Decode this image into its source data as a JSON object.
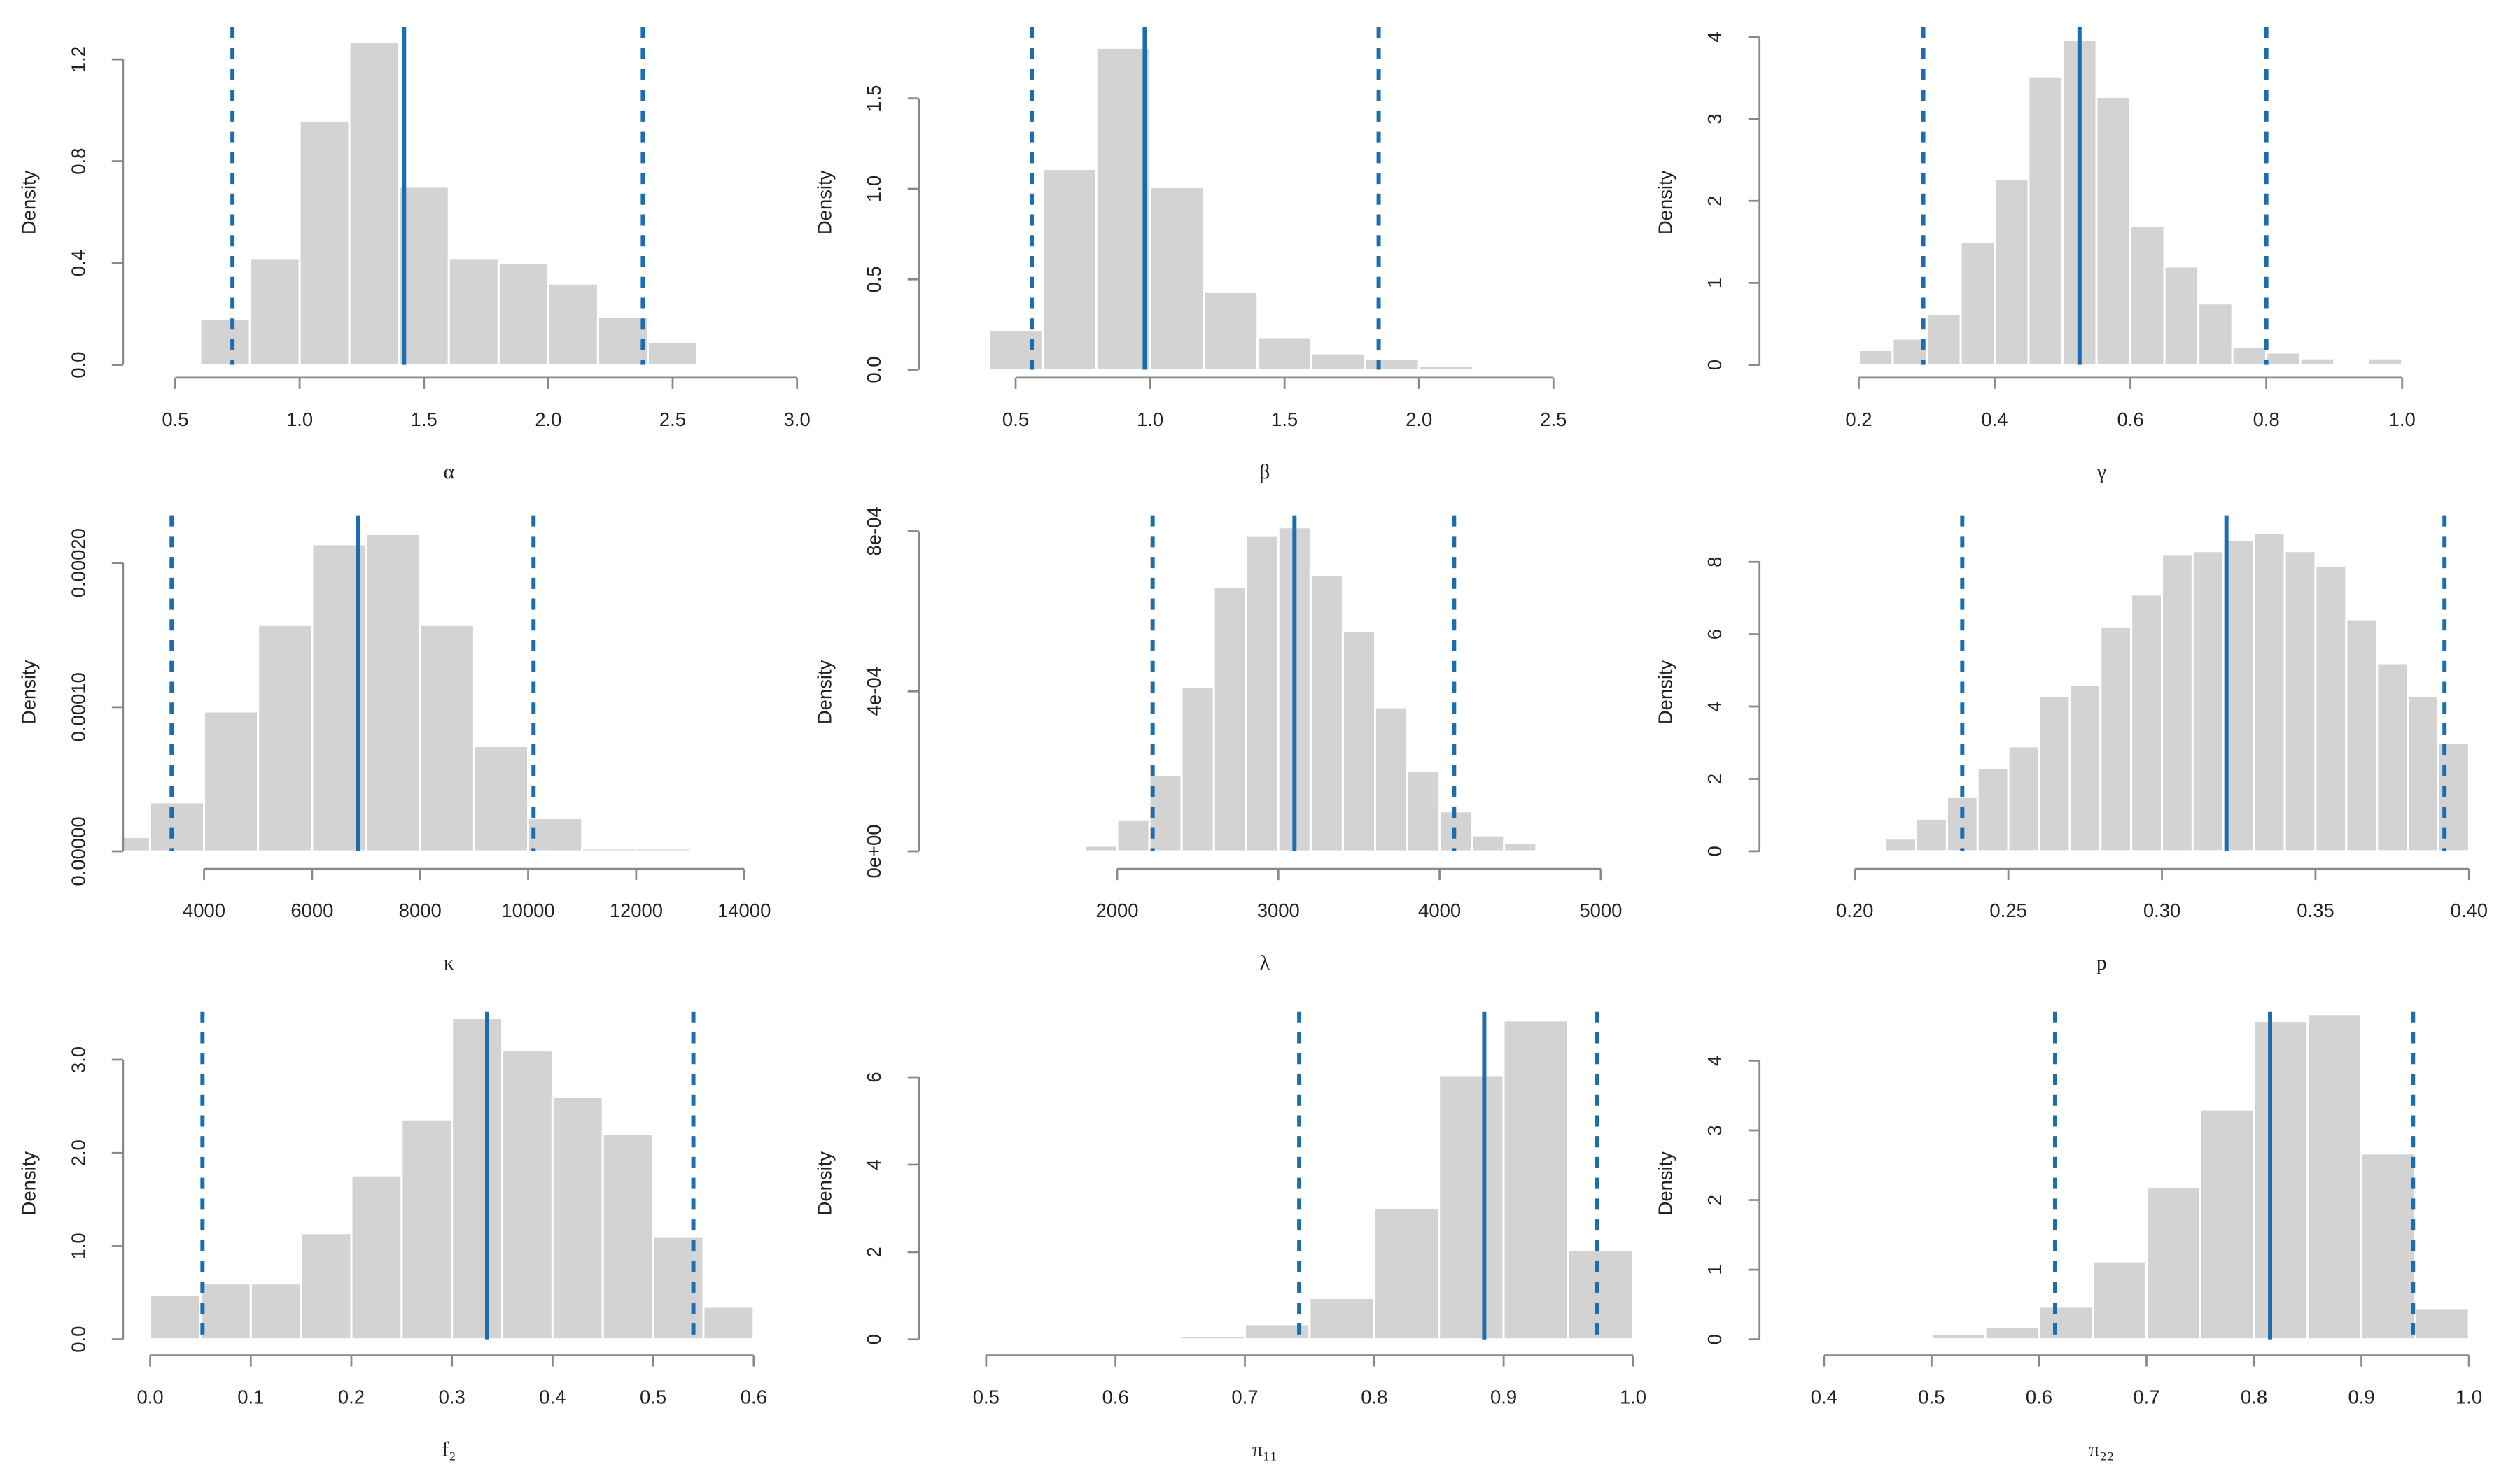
{
  "chart_data": [
    {
      "type": "histogram",
      "xlabel": "α",
      "ylabel": "Density",
      "color": "#d3d3d3",
      "line_color": "#1b6db0",
      "bins": [
        0.6,
        0.8,
        1.0,
        1.2,
        1.4,
        1.6,
        1.8,
        2.0,
        2.2,
        2.4,
        2.6
      ],
      "values": [
        0.18,
        0.42,
        0.96,
        1.27,
        0.7,
        0.42,
        0.4,
        0.32,
        0.19,
        0.09
      ],
      "mean": 1.42,
      "interval": [
        0.73,
        2.38
      ],
      "xlim": [
        0.29,
        3.02
      ],
      "ylim": [
        -0.05,
        1.327
      ],
      "xticks": [
        0.5,
        {
          "value": 1,
          "label": "1.0"
        },
        1.5,
        {
          "value": 2,
          "label": "2.0"
        },
        2.5,
        {
          "value": 3,
          "label": "3.0"
        }
      ],
      "yticks": [
        {
          "value": 0,
          "label": "0.0"
        },
        0.4,
        0.8,
        1.2
      ]
    },
    {
      "type": "histogram",
      "xlabel": "β",
      "ylabel": "Density",
      "color": "#d3d3d3",
      "line_color": "#1b6db0",
      "bins": [
        0.4,
        0.6,
        0.8,
        1.0,
        1.2,
        1.4,
        1.6,
        1.8,
        2.0,
        2.2,
        2.4,
        2.6
      ],
      "values": [
        0.22,
        1.11,
        1.78,
        1.01,
        0.43,
        0.18,
        0.09,
        0.06,
        0.02,
        0.01,
        0.01
      ],
      "mean": 0.98,
      "interval": [
        0.56,
        1.85
      ],
      "xlim": [
        0.14,
        2.82
      ],
      "ylim": [
        -0.044,
        1.894
      ],
      "xticks": [
        0.5,
        {
          "value": 1,
          "label": "1.0"
        },
        1.5,
        {
          "value": 2,
          "label": "2.0"
        },
        2.5
      ],
      "yticks": [
        {
          "value": 0,
          "label": "0.0"
        },
        0.5,
        {
          "value": 1,
          "label": "1.0"
        },
        1.5
      ]
    },
    {
      "type": "histogram",
      "xlabel": "γ",
      "ylabel": "Density",
      "color": "#d3d3d3",
      "line_color": "#1b6db0",
      "bins": [
        0.2,
        0.25,
        0.3,
        0.35,
        0.4,
        0.45,
        0.5,
        0.55,
        0.6,
        0.65,
        0.7,
        0.75,
        0.8,
        0.85,
        0.9,
        0.95,
        1.0,
        1.05
      ],
      "values": [
        0.18,
        0.32,
        0.62,
        1.5,
        2.27,
        3.52,
        3.97,
        3.27,
        1.7,
        1.2,
        0.75,
        0.22,
        0.15,
        0.08,
        0.02,
        0.08,
        0.02
      ],
      "mean": 0.525,
      "interval": [
        0.295,
        0.8
      ],
      "xlim": [
        0.054,
        1.103
      ],
      "ylim": [
        -0.156,
        4.12
      ],
      "xticks": [
        0.2,
        0.4,
        0.6,
        0.8,
        {
          "value": 1,
          "label": "1.0"
        }
      ],
      "yticks": [
        0,
        1,
        2,
        3,
        4
      ]
    },
    {
      "type": "histogram",
      "xlabel": "κ",
      "ylabel": "Density",
      "color": "#d3d3d3",
      "line_color": "#1b6db0",
      "bins": [
        2000,
        3000,
        4000,
        5000,
        6000,
        7000,
        8000,
        9000,
        10000,
        11000,
        12000,
        13000
      ],
      "values": [
        1e-05,
        3.4e-05,
        9.7e-05,
        0.000157,
        0.000213,
        0.00022,
        0.000157,
        7.3e-05,
        2.3e-05,
        2e-06,
        2e-06
      ],
      "mean": 6850,
      "interval": [
        3400,
        10100
      ],
      "xlim": [
        2500,
        15070
      ],
      "ylim": [
        -1.22e-05,
        0.000233
      ],
      "xticks": [
        4000,
        6000,
        8000,
        10000,
        12000,
        14000
      ],
      "yticks": [
        {
          "value": 0,
          "label": "0.00000"
        },
        {
          "value": 0.0001,
          "label": "0.00010"
        },
        {
          "value": 0.0002,
          "label": "0.00020"
        }
      ]
    },
    {
      "type": "histogram",
      "xlabel": "λ",
      "ylabel": "Density",
      "color": "#d3d3d3",
      "line_color": "#1b6db0",
      "bins": [
        1600,
        1800,
        2000,
        2200,
        2400,
        2600,
        2800,
        3000,
        3200,
        3400,
        3600,
        3800,
        4000,
        4200,
        4400,
        4600,
        4800
      ],
      "values": [
        2e-06,
        1.4e-05,
        8e-05,
        0.00019,
        0.00041,
        0.00066,
        0.00079,
        0.00081,
        0.00069,
        0.00055,
        0.00036,
        0.0002,
        0.0001,
        4e-05,
        2e-05,
        4e-06
      ],
      "mean": 3100,
      "interval": [
        2220,
        4090
      ],
      "xlim": [
        770,
        5240
      ],
      "ylim": [
        -4.4e-05,
        0.00084
      ],
      "xticks": [
        2000,
        3000,
        4000,
        5000
      ],
      "yticks": [
        {
          "value": 0,
          "label": "0e+00"
        },
        {
          "value": 0.0004,
          "label": "4e-04"
        },
        {
          "value": 0.0008,
          "label": "8e-04"
        }
      ]
    },
    {
      "type": "histogram",
      "xlabel": "p",
      "ylabel": "Density",
      "color": "#d3d3d3",
      "line_color": "#1b6db0",
      "bins": [
        0.2,
        0.21,
        0.22,
        0.23,
        0.24,
        0.25,
        0.26,
        0.27,
        0.28,
        0.29,
        0.3,
        0.31,
        0.32,
        0.33,
        0.34,
        0.35,
        0.36,
        0.37,
        0.38,
        0.39,
        0.4
      ],
      "values": [
        0.05,
        0.35,
        0.9,
        1.5,
        2.3,
        2.9,
        4.3,
        4.6,
        6.2,
        7.1,
        8.2,
        8.3,
        8.6,
        8.8,
        8.3,
        7.9,
        6.4,
        5.2,
        4.3,
        3.0
      ],
      "mean": 0.321,
      "interval": [
        0.235,
        0.392
      ],
      "xlim": [
        0.169,
        0.401
      ],
      "ylim": [
        -0.49,
        9.29
      ],
      "xticks": [
        {
          "value": 0.2,
          "label": "0.20"
        },
        0.25,
        {
          "value": 0.3,
          "label": "0.30"
        },
        0.35,
        {
          "value": 0.4,
          "label": "0.40"
        }
      ],
      "yticks": [
        0,
        2,
        4,
        6,
        8
      ]
    },
    {
      "type": "histogram",
      "xlabel": "f₂",
      "ylabel": "Density",
      "color": "#d3d3d3",
      "line_color": "#1b6db0",
      "bins": [
        0.0,
        0.05,
        0.1,
        0.15,
        0.2,
        0.25,
        0.3,
        0.35,
        0.4,
        0.45,
        0.5,
        0.55,
        0.6,
        0.65
      ],
      "values": [
        0.48,
        0.6,
        0.6,
        1.14,
        1.76,
        2.36,
        3.45,
        3.1,
        2.6,
        2.2,
        1.1,
        0.35,
        0.02
      ],
      "mean": 0.335,
      "interval": [
        0.052,
        0.54
      ],
      "xlim": [
        -0.027,
        0.648
      ],
      "ylim": [
        -0.172,
        3.52
      ],
      "xticks": [
        {
          "value": 0,
          "label": "0.0"
        },
        0.1,
        0.2,
        0.3,
        0.4,
        0.5,
        0.6
      ],
      "yticks": [
        {
          "value": 0,
          "label": "0.0"
        },
        {
          "value": 1,
          "label": "1.0"
        },
        {
          "value": 2,
          "label": "2.0"
        },
        {
          "value": 3,
          "label": "3.0"
        }
      ]
    },
    {
      "type": "histogram",
      "xlabel": "π₁₁",
      "ylabel": "Density",
      "color": "#d3d3d3",
      "line_color": "#1b6db0",
      "bins": [
        0.65,
        0.7,
        0.75,
        0.8,
        0.85,
        0.9,
        0.95,
        1.0
      ],
      "values": [
        0.07,
        0.35,
        0.95,
        3.0,
        6.05,
        7.3,
        2.05
      ],
      "mean": 0.885,
      "interval": [
        0.742,
        0.972
      ],
      "xlim": [
        0.448,
        1.005
      ],
      "ylim": [
        -0.366,
        7.51
      ],
      "xticks": [
        0.5,
        0.6,
        0.7,
        0.8,
        0.9,
        {
          "value": 1,
          "label": "1.0"
        }
      ],
      "yticks": [
        0,
        2,
        4,
        6
      ]
    },
    {
      "type": "histogram",
      "xlabel": "π₂₂",
      "ylabel": "Density",
      "color": "#d3d3d3",
      "line_color": "#1b6db0",
      "bins": [
        0.45,
        0.5,
        0.55,
        0.6,
        0.65,
        0.7,
        0.75,
        0.8,
        0.85,
        0.9,
        0.95,
        1.0
      ],
      "values": [
        0.03,
        0.08,
        0.18,
        0.47,
        1.12,
        2.18,
        3.3,
        4.57,
        4.67,
        2.67,
        0.45
      ],
      "mean": 0.815,
      "interval": [
        0.615,
        0.948
      ],
      "xlim": [
        0.34,
        1.003
      ],
      "ylim": [
        -0.23,
        4.71
      ],
      "xticks": [
        0.4,
        0.5,
        0.6,
        0.7,
        0.8,
        0.9,
        {
          "value": 1,
          "label": "1.0"
        }
      ],
      "yticks": [
        0,
        1,
        2,
        3,
        4
      ]
    }
  ]
}
